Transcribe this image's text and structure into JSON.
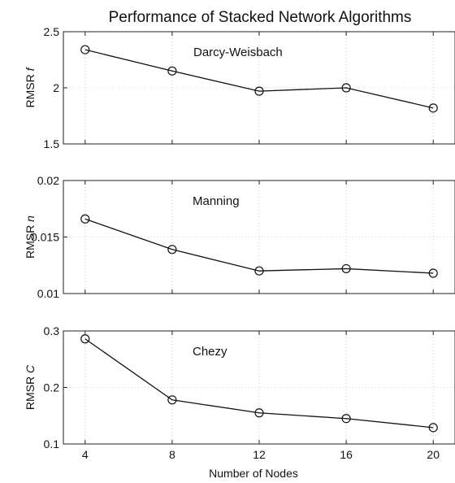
{
  "figure": {
    "title": "Performance of Stacked Network Algorithms",
    "xlabel": "Number of Nodes"
  },
  "chart_data": [
    {
      "type": "line",
      "annotation": "Darcy-Weisbach",
      "ylabel_main": "RMSR",
      "ylabel_symbol": "f",
      "x": [
        4,
        8,
        12,
        16,
        20
      ],
      "values": [
        2.34,
        2.15,
        1.97,
        2.0,
        1.82
      ],
      "xlim": [
        3,
        21
      ],
      "ylim": [
        1.5,
        2.5
      ],
      "yticks": [
        1.5,
        2,
        2.5
      ],
      "ytick_labels": [
        "1.5",
        "2",
        "2.5"
      ],
      "xticks": [
        4,
        8,
        12,
        16,
        20
      ],
      "xtick_labels": [
        "",
        "",
        "",
        "",
        ""
      ],
      "grid": true,
      "marker": "open-circle"
    },
    {
      "type": "line",
      "annotation": "Manning",
      "ylabel_main": "RMSR",
      "ylabel_symbol": "n",
      "x": [
        4,
        8,
        12,
        16,
        20
      ],
      "values": [
        0.0166,
        0.0139,
        0.012,
        0.0122,
        0.0118
      ],
      "xlim": [
        3,
        21
      ],
      "ylim": [
        0.01,
        0.02
      ],
      "yticks": [
        0.01,
        0.015,
        0.02
      ],
      "ytick_labels": [
        "0.01",
        "0.015",
        "0.02"
      ],
      "xticks": [
        4,
        8,
        12,
        16,
        20
      ],
      "xtick_labels": [
        "",
        "",
        "",
        "",
        ""
      ],
      "grid": true,
      "marker": "open-circle"
    },
    {
      "type": "line",
      "annotation": "Chezy",
      "ylabel_main": "RMSR",
      "ylabel_symbol": "C",
      "x": [
        4,
        8,
        12,
        16,
        20
      ],
      "values": [
        0.286,
        0.178,
        0.155,
        0.145,
        0.129
      ],
      "xlim": [
        3,
        21
      ],
      "ylim": [
        0.1,
        0.3
      ],
      "yticks": [
        0.1,
        0.2,
        0.3
      ],
      "ytick_labels": [
        "0.1",
        "0.2",
        "0.3"
      ],
      "xticks": [
        4,
        8,
        12,
        16,
        20
      ],
      "xtick_labels": [
        "4",
        "8",
        "12",
        "16",
        "20"
      ],
      "grid": true,
      "marker": "open-circle"
    }
  ]
}
